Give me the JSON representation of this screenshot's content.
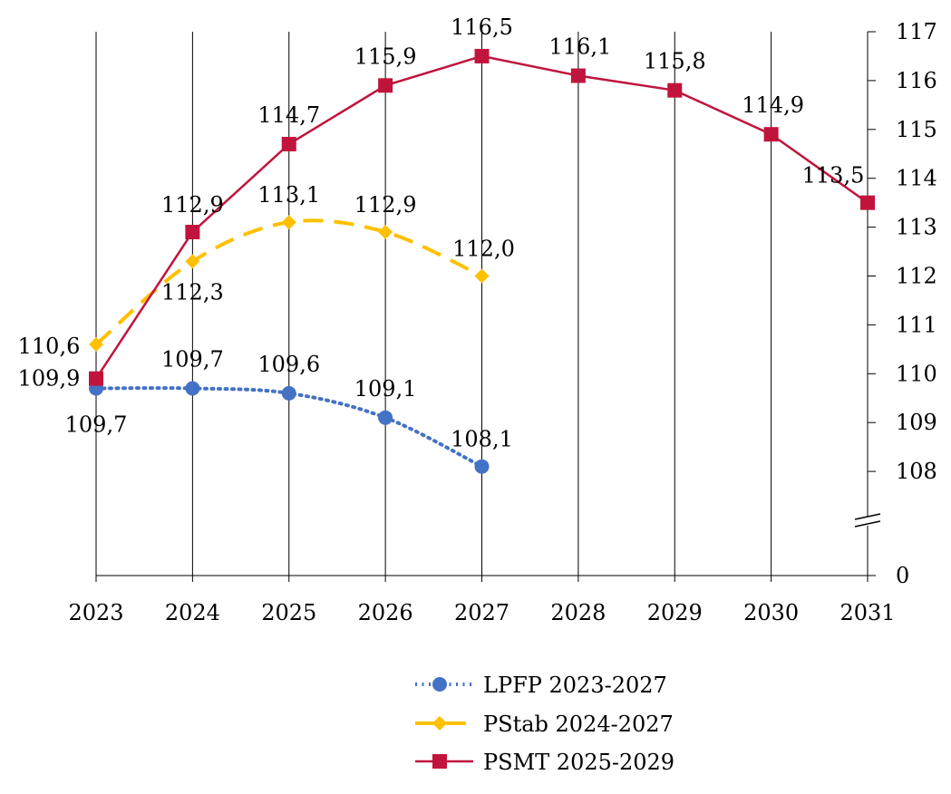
{
  "chart_data": {
    "type": "line",
    "title": "",
    "xlabel": "",
    "ylabel": "",
    "x": [
      2023,
      2024,
      2025,
      2026,
      2027,
      2028,
      2029,
      2030,
      2031
    ],
    "x_tick_labels": [
      "2023",
      "2024",
      "2025",
      "2026",
      "2027",
      "2028",
      "2029",
      "2030",
      "2031"
    ],
    "y_axis": {
      "position": "right",
      "ylim": [
        108,
        117
      ],
      "ticks": [
        108,
        109,
        110,
        111,
        112,
        113,
        114,
        115,
        116,
        117
      ],
      "tick_labels": [
        "108",
        "109",
        "110",
        "111",
        "112",
        "113",
        "114",
        "115",
        "116",
        "117"
      ],
      "broken_axis": true,
      "baseline_label": "0"
    },
    "grid": {
      "vertical": true,
      "horizontal": false
    },
    "legend_position": "bottom-center",
    "series": [
      {
        "name": "LPFP 2023-2027",
        "color": "#4472C4",
        "line_style": "dotted",
        "marker": "circle",
        "x": [
          2023,
          2024,
          2025,
          2026,
          2027
        ],
        "values": [
          109.7,
          109.7,
          109.6,
          109.1,
          108.1
        ],
        "labels": [
          "109,7",
          "109,7",
          "109,6",
          "109,1",
          "108,1"
        ]
      },
      {
        "name": "PStab 2024-2027",
        "color": "#FFC000",
        "line_style": "dashed",
        "marker": "diamond",
        "x": [
          2023,
          2024,
          2025,
          2026,
          2027
        ],
        "values": [
          110.6,
          112.3,
          113.1,
          112.9,
          112.0
        ],
        "labels": [
          "110,6",
          "112,3",
          "113,1",
          "112,9",
          "112,0"
        ]
      },
      {
        "name": "PSMT 2025-2029",
        "color": "#C0143C",
        "line_style": "solid",
        "marker": "square",
        "x": [
          2023,
          2024,
          2025,
          2026,
          2027,
          2028,
          2029,
          2030,
          2031
        ],
        "values": [
          109.9,
          112.9,
          114.7,
          115.9,
          116.5,
          116.1,
          115.8,
          114.9,
          113.5
        ],
        "labels": [
          "109,9",
          "112,9",
          "114,7",
          "115,9",
          "116,5",
          "116,1",
          "115,8",
          "114,9",
          "113,5"
        ]
      }
    ]
  }
}
